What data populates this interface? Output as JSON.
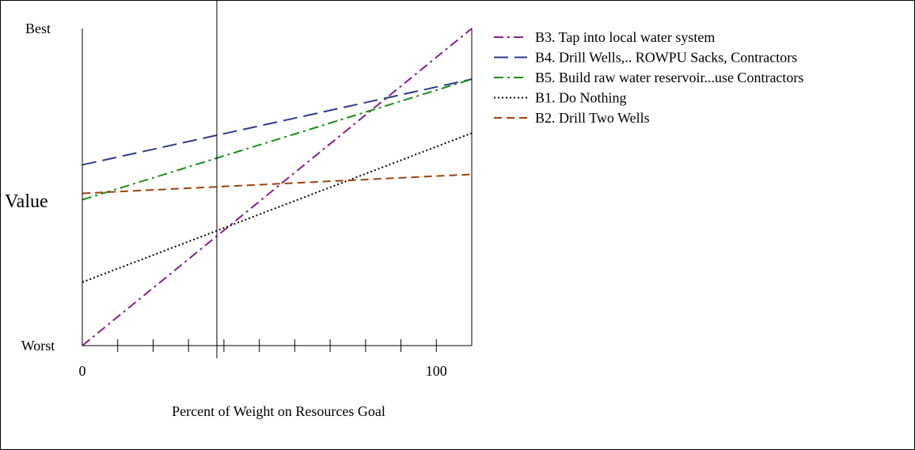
{
  "chart_data": {
    "type": "line",
    "xlabel": "Percent of Weight on Resources Goal",
    "ylabel": "Value",
    "x_ticks": [
      {
        "value": 0,
        "label": "0"
      },
      {
        "value": 100,
        "label": "100"
      }
    ],
    "y_ticks": [
      {
        "value": 1,
        "label": "Best"
      },
      {
        "value": 0,
        "label": "Worst"
      }
    ],
    "xlim": [
      0,
      110
    ],
    "ylim": [
      0,
      1
    ],
    "minor_tick_step": 10,
    "reference_line_x": 38,
    "legend_position": "right",
    "series": [
      {
        "name": "B3.  Tap into local water system",
        "x": [
          0,
          110
        ],
        "y": [
          0.0,
          1.0
        ],
        "color": "#8b1a8b",
        "dash": "12,5,3,5"
      },
      {
        "name": "B4.  Drill Wells,.. ROWPU Sacks, Contractors",
        "x": [
          0,
          110
        ],
        "y": [
          0.57,
          0.84
        ],
        "color": "#2e3a8c",
        "dash": "18,8"
      },
      {
        "name": "B5.  Build raw water reservoir...use Contractors",
        "x": [
          0,
          110
        ],
        "y": [
          0.46,
          0.84
        ],
        "color": "#1a8c1a",
        "dash": "12,5,3,5"
      },
      {
        "name": "B1.  Do Nothing",
        "x": [
          0,
          110
        ],
        "y": [
          0.2,
          0.67
        ],
        "color": "#000000",
        "dash": "2,3"
      },
      {
        "name": "B2.  Drill Two Wells",
        "x": [
          0,
          110
        ],
        "y": [
          0.48,
          0.54
        ],
        "color": "#a0400a",
        "dash": "10,6"
      }
    ]
  }
}
